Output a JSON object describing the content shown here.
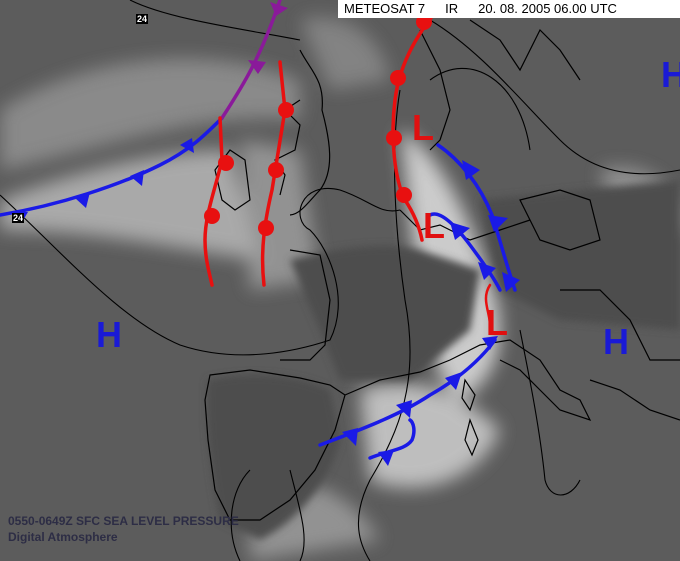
{
  "header": {
    "satellite": "METEOSAT 7",
    "channel": "IR",
    "datetime": "20. 08. 2005 06.00 UTC"
  },
  "footer": {
    "product": "0550-0649Z SFC SEA LEVEL PRESSURE",
    "credit": "Digital Atmosphere"
  },
  "isobar_labels": [
    "24",
    "24"
  ],
  "pressure_centers": {
    "high": [
      "H",
      "H",
      "H"
    ],
    "low": [
      "L",
      "L",
      "L"
    ]
  },
  "colors": {
    "high": "#1a1ad6",
    "low": "#e01010",
    "cold_front": "#1a1ae6",
    "warm_front": "#e81010",
    "occluded_front": "#8a1a9a",
    "isobar": "#000000"
  }
}
